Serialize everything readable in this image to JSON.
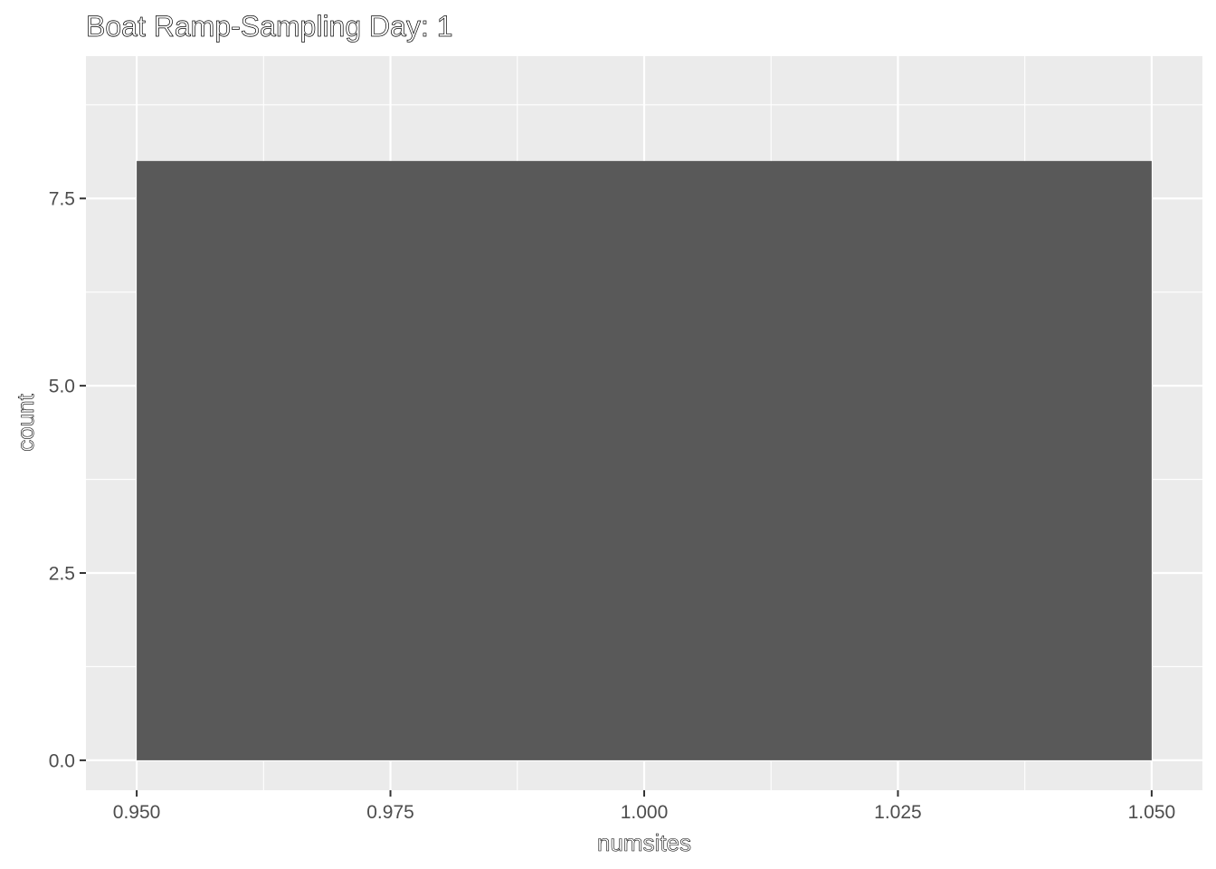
{
  "chart_data": {
    "type": "bar",
    "title": "Boat Ramp-Sampling Day: 1",
    "xlabel": "numsites",
    "ylabel": "count",
    "bins": [
      {
        "x_start": 0.95,
        "x_end": 1.05,
        "count": 8
      }
    ],
    "xlim": [
      0.945,
      1.055
    ],
    "ylim": [
      -0.4,
      9.4
    ],
    "x_ticks": [
      {
        "value": 0.95,
        "label": "0.950"
      },
      {
        "value": 0.975,
        "label": "0.975"
      },
      {
        "value": 1.0,
        "label": "1.000"
      },
      {
        "value": 1.025,
        "label": "1.025"
      },
      {
        "value": 1.05,
        "label": "1.050"
      }
    ],
    "y_ticks": [
      {
        "value": 0.0,
        "label": "0.0"
      },
      {
        "value": 2.5,
        "label": "2.5"
      },
      {
        "value": 5.0,
        "label": "5.0"
      },
      {
        "value": 7.5,
        "label": "7.5"
      }
    ],
    "x_minor": [
      0.9625,
      0.9875,
      1.0125,
      1.0375
    ],
    "y_minor": [
      1.25,
      3.75,
      6.25,
      8.75
    ],
    "grid": true,
    "colors": {
      "panel": "#EBEBEB",
      "grid": "#FFFFFF",
      "bar": "#595959",
      "tick": "#333333"
    }
  }
}
